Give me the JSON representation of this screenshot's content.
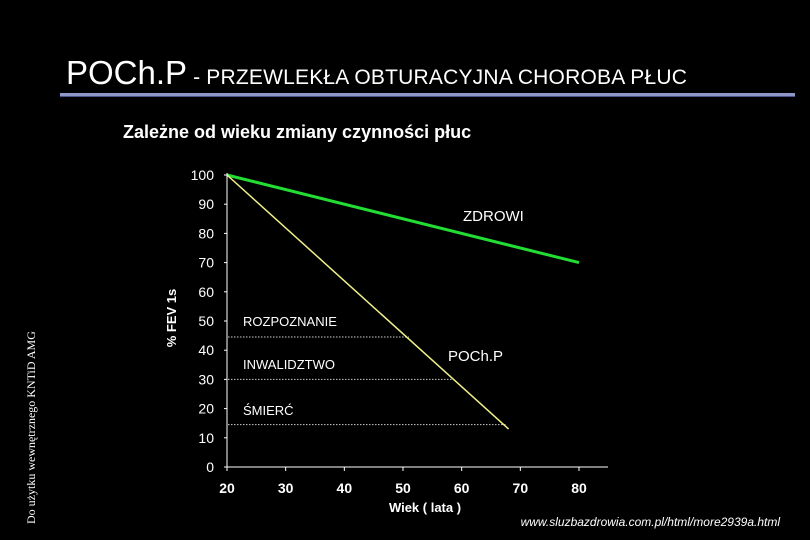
{
  "header": {
    "title_main": "POCh.P",
    "title_sub": " - PRZEWLEKŁA  OBTURACYJNA  CHOROBA PŁUC",
    "subtitle": "Zależne od wieku zmiany czynności płuc"
  },
  "side_note": "Do użytku wewnętrznego KNTiD AMG",
  "source": "www.sluzbazdrowia.com.pl/html/more2939a.html",
  "colors": {
    "background": "#000000",
    "healthy_line": "#22dd33",
    "copd_line": "#f0f08a",
    "threshold_line": "#cccccc",
    "axis": "#ffffff"
  },
  "chart_data": {
    "type": "line",
    "xlabel": "Wiek ( lata )",
    "ylabel": "% FEV 1s",
    "xlim": [
      20,
      80
    ],
    "ylim": [
      0,
      100
    ],
    "x_ticks": [
      20,
      30,
      40,
      50,
      60,
      70,
      80
    ],
    "y_ticks": [
      0,
      10,
      20,
      30,
      40,
      50,
      60,
      70,
      80,
      90,
      100
    ],
    "grid": false,
    "series": [
      {
        "name": "ZDROWI",
        "x": [
          20,
          80
        ],
        "y": [
          100,
          70
        ]
      },
      {
        "name": "POCh.P",
        "x": [
          20,
          68
        ],
        "y": [
          100,
          13
        ]
      }
    ],
    "thresholds": [
      {
        "label": "ROZPOZNANIE",
        "y": 44.5,
        "x_end": 51
      },
      {
        "label": "INWALIDZTWO",
        "y": 30,
        "x_end": 58.7
      },
      {
        "label": "ŚMIERĆ",
        "y": 14.5,
        "x_end": 67.5
      }
    ]
  }
}
